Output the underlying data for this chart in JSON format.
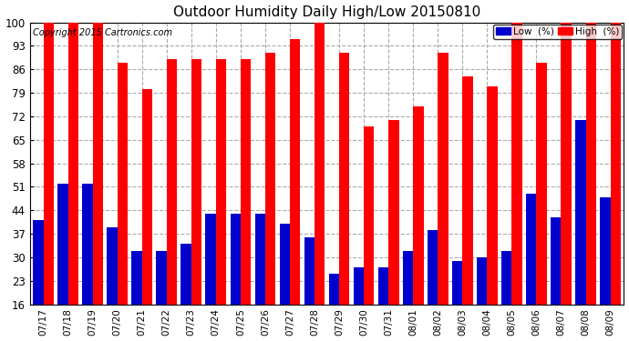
{
  "title": "Outdoor Humidity Daily High/Low 20150810",
  "copyright": "Copyright 2015 Cartronics.com",
  "categories": [
    "07/17",
    "07/18",
    "07/19",
    "07/20",
    "07/21",
    "07/22",
    "07/23",
    "07/24",
    "07/25",
    "07/26",
    "07/27",
    "07/28",
    "07/29",
    "07/30",
    "07/31",
    "08/01",
    "08/02",
    "08/03",
    "08/04",
    "08/05",
    "08/06",
    "08/07",
    "08/08",
    "08/09"
  ],
  "high": [
    100,
    100,
    100,
    88,
    80,
    89,
    89,
    89,
    89,
    91,
    95,
    100,
    91,
    69,
    71,
    75,
    91,
    84,
    81,
    100,
    88,
    100,
    100,
    100
  ],
  "low": [
    41,
    52,
    52,
    39,
    32,
    32,
    34,
    43,
    43,
    43,
    40,
    36,
    25,
    27,
    27,
    32,
    38,
    29,
    30,
    32,
    49,
    42,
    71,
    48
  ],
  "bar_width": 0.42,
  "ymin": 16,
  "ylim": [
    16,
    100
  ],
  "yticks": [
    16,
    23,
    30,
    37,
    44,
    51,
    58,
    65,
    72,
    79,
    86,
    93,
    100
  ],
  "high_color": "#ff0000",
  "low_color": "#0000cc",
  "bg_color": "#ffffff",
  "grid_color": "#aaaaaa",
  "legend_low_label": "Low  (%)",
  "legend_high_label": "High  (%)"
}
